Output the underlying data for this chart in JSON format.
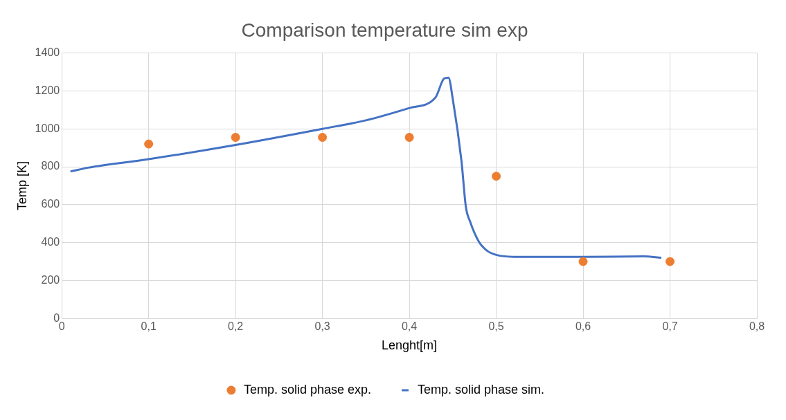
{
  "chart_data": {
    "type": "scatter",
    "title": "Comparison temperature sim exp",
    "xlabel": "Lenght[m]",
    "ylabel": "Temp [K]",
    "xlim": [
      0,
      0.8
    ],
    "xticks": [
      0,
      {
        "value": 0.1,
        "label": "0,1"
      },
      {
        "value": 0.2,
        "label": "0,2"
      },
      {
        "value": 0.3,
        "label": "0,3"
      },
      {
        "value": 0.4,
        "label": "0,4"
      },
      {
        "value": 0.5,
        "label": "0,5"
      },
      {
        "value": 0.6,
        "label": "0,6"
      },
      {
        "value": 0.7,
        "label": "0,7"
      },
      {
        "value": 0.8,
        "label": "0,8"
      }
    ],
    "ylim": [
      0,
      1400
    ],
    "yticks": [
      0,
      200,
      400,
      600,
      800,
      1000,
      1200,
      1400
    ],
    "grid": true,
    "legend": "bottom",
    "series": [
      {
        "name": "Temp. solid phase exp.",
        "type": "scatter",
        "marker": "circle",
        "color": "#ed7d31",
        "x": [
          0.1,
          0.2,
          0.3,
          0.4,
          0.5,
          0.6,
          0.7
        ],
        "values": [
          920,
          955,
          955,
          955,
          750,
          300,
          300
        ]
      },
      {
        "name": "Temp. solid phase sim.",
        "type": "line",
        "marker": "none",
        "color": "#4472c4",
        "x": [
          0.01,
          0.03,
          0.1,
          0.2,
          0.3,
          0.35,
          0.4,
          0.43,
          0.44,
          0.445,
          0.45,
          0.46,
          0.465,
          0.47,
          0.48,
          0.49,
          0.5,
          0.52,
          0.6,
          0.67,
          0.69
        ],
        "values": [
          775,
          795,
          840,
          915,
          1000,
          1045,
          1110,
          1165,
          1265,
          1270,
          1157,
          830,
          590,
          510,
          405,
          355,
          335,
          325,
          325,
          327,
          320
        ]
      }
    ]
  }
}
